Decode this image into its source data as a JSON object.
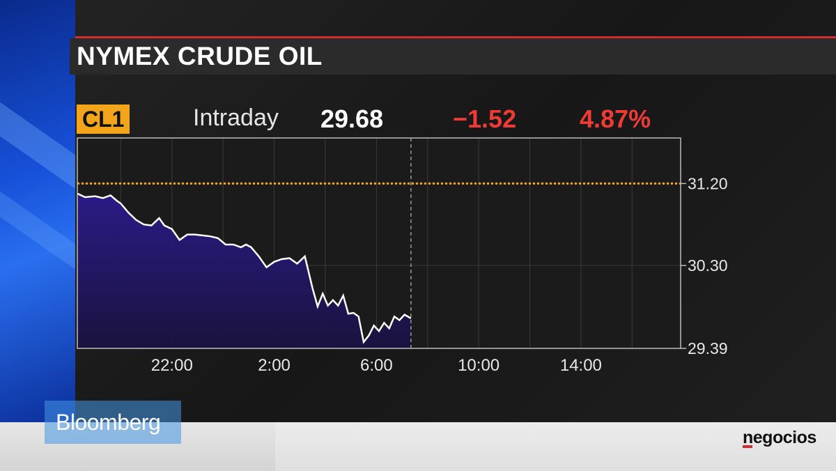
{
  "header": {
    "title": "NYMEX CRUDE OIL"
  },
  "quote": {
    "ticker": "CL1",
    "range": "Intraday",
    "last": "29.68",
    "change": "−1.52",
    "change_pct": "4.87%"
  },
  "branding": {
    "source": "Bloomberg",
    "outlet": "negocios"
  },
  "colors": {
    "ticker_bg": "#f2a51a",
    "negative": "#ef3b34",
    "prev_close_line": "#f2a51a",
    "price_line": "#ffffff",
    "area_fill_top": "#2a1b8c",
    "area_fill_bottom": "#1a1240"
  },
  "chart_data": {
    "type": "area",
    "title": "NYMEX CRUDE OIL",
    "x_tick_labels": [
      "22:00",
      "2:00",
      "6:00",
      "10:00",
      "14:00"
    ],
    "x_tick_hours": [
      22,
      26,
      30,
      34,
      38
    ],
    "xlim_hours": [
      18.3,
      41.9
    ],
    "ylim": [
      29.39,
      31.7
    ],
    "y_tick_labels": [
      "31.20",
      "30.30",
      "29.39"
    ],
    "y_tick_values": [
      31.2,
      30.3,
      29.39
    ],
    "previous_close": 31.2,
    "current_time_hours": 31.35,
    "grid": true,
    "series": [
      {
        "x": [
          18.3,
          18.6,
          19.0,
          19.3,
          19.6,
          19.85,
          20.0,
          20.3,
          20.6,
          20.9,
          21.2,
          21.5,
          21.7,
          22.0,
          22.3,
          22.6,
          22.9,
          23.2,
          23.5,
          23.8,
          24.1,
          24.4,
          24.7,
          24.9,
          25.1,
          25.4,
          25.7,
          26.0,
          26.3,
          26.6,
          26.9,
          27.2,
          27.5,
          27.7,
          27.9,
          28.1,
          28.3,
          28.5,
          28.7,
          28.9,
          29.1,
          29.3,
          29.5,
          29.7,
          29.9,
          30.1,
          30.3,
          30.5,
          30.7,
          30.9,
          31.1,
          31.35
        ],
        "y": [
          31.09,
          31.05,
          31.06,
          31.04,
          31.07,
          31.01,
          30.98,
          30.88,
          30.8,
          30.75,
          30.74,
          30.82,
          30.74,
          30.7,
          30.58,
          30.64,
          30.64,
          30.63,
          30.62,
          30.6,
          30.53,
          30.53,
          30.5,
          30.53,
          30.5,
          30.4,
          30.28,
          30.34,
          30.37,
          30.38,
          30.32,
          30.4,
          30.05,
          29.85,
          29.99,
          29.86,
          29.92,
          29.86,
          29.97,
          29.77,
          29.78,
          29.74,
          29.46,
          29.53,
          29.64,
          29.58,
          29.67,
          29.61,
          29.74,
          29.7,
          29.76,
          29.72
        ]
      }
    ]
  }
}
